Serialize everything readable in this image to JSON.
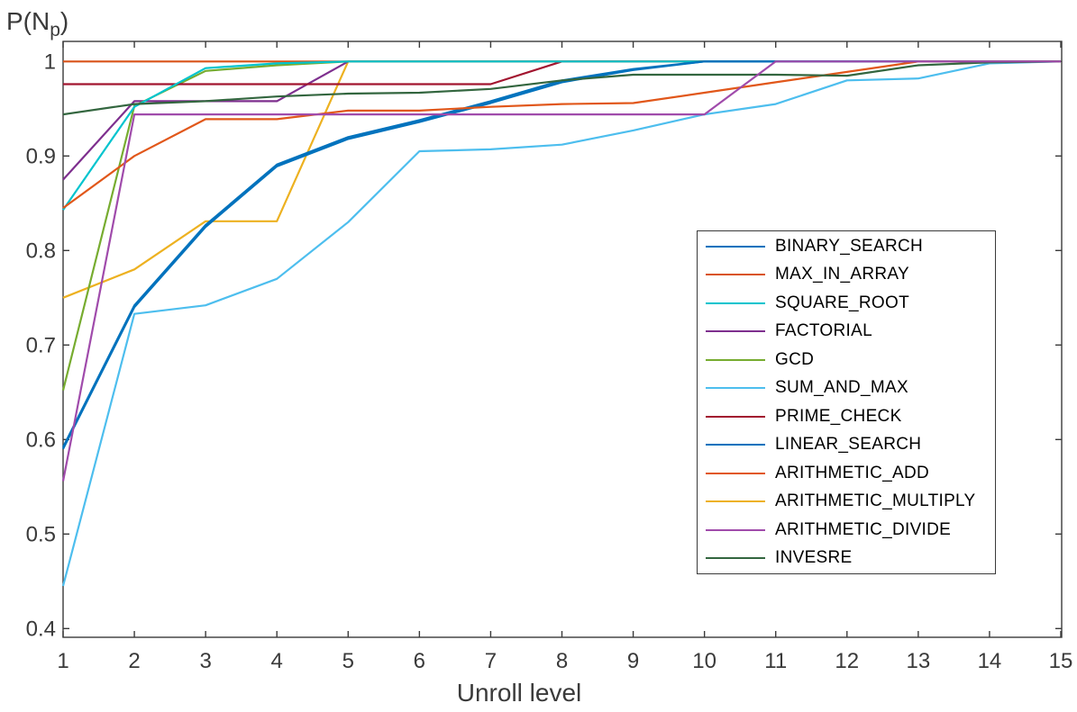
{
  "figure": {
    "ylabel": {
      "prefix": "P(N",
      "sub": "p",
      "suffix": ")"
    }
  },
  "chart_data": {
    "type": "line",
    "title": "",
    "xlabel": "Unroll level",
    "ylabel": "P(N_p)",
    "x": [
      1,
      2,
      3,
      4,
      5,
      6,
      7,
      8,
      9,
      10,
      11,
      12,
      13,
      14,
      15
    ],
    "xlim": [
      1,
      15
    ],
    "ylim": [
      0.4,
      1.0
    ],
    "xticks": [
      1,
      2,
      3,
      4,
      5,
      6,
      7,
      8,
      9,
      10,
      11,
      12,
      13,
      14,
      15
    ],
    "yticks": [
      0.4,
      0.5,
      0.6,
      0.7,
      0.8,
      0.9,
      1
    ],
    "grid": false,
    "legend_position": "middle-right",
    "axis_color": "#3a3a3a",
    "series": [
      {
        "name": "BINARY_SEARCH",
        "color": "#0072BD",
        "values": [
          0.59,
          0.74,
          0.825,
          0.889,
          0.918,
          0.936,
          0.956,
          0.978,
          0.991,
          1,
          1,
          1,
          1,
          1,
          1
        ]
      },
      {
        "name": "MAX_IN_ARRAY",
        "color": "#D95319",
        "values": [
          1,
          1,
          1,
          1,
          1,
          1,
          1,
          1,
          1,
          1,
          1,
          1,
          1,
          1,
          1
        ]
      },
      {
        "name": "SQUARE_ROOT",
        "color": "#00C4CE",
        "values": [
          0.843,
          0.952,
          0.993,
          0.998,
          1,
          1,
          1,
          1,
          1,
          1,
          1,
          1,
          1,
          1,
          1
        ]
      },
      {
        "name": "FACTORIAL",
        "color": "#7E2F8E",
        "values": [
          0.875,
          0.958,
          0.958,
          0.958,
          1,
          1,
          1,
          1,
          1,
          1,
          1,
          1,
          1,
          1,
          1
        ]
      },
      {
        "name": "GCD",
        "color": "#77AC30",
        "values": [
          0.652,
          0.953,
          0.99,
          0.996,
          1,
          1,
          1,
          1,
          1,
          1,
          1,
          1,
          1,
          1,
          1
        ]
      },
      {
        "name": "SUM_AND_MAX",
        "color": "#4DBEEE",
        "values": [
          0.445,
          0.733,
          0.742,
          0.77,
          0.83,
          0.905,
          0.907,
          0.912,
          0.927,
          0.944,
          0.955,
          0.98,
          0.982,
          0.998,
          1
        ]
      },
      {
        "name": "PRIME_CHECK",
        "color": "#A2142F",
        "values": [
          0.976,
          0.976,
          0.976,
          0.976,
          0.976,
          0.976,
          0.976,
          1,
          1,
          1,
          1,
          1,
          1,
          1,
          1
        ]
      },
      {
        "name": "LINEAR_SEARCH",
        "color": "#0072BD",
        "values": [
          0.592,
          0.742,
          0.827,
          0.891,
          0.92,
          0.938,
          0.958,
          0.98,
          0.992,
          1,
          1,
          1,
          1,
          1,
          1
        ]
      },
      {
        "name": "ARITHMETIC_ADD",
        "color": "#E1571A",
        "values": [
          0.845,
          0.9,
          0.939,
          0.939,
          0.948,
          0.948,
          0.952,
          0.955,
          0.956,
          0.967,
          0.978,
          0.989,
          1,
          1,
          1
        ]
      },
      {
        "name": "ARITHMETIC_MULTIPLY",
        "color": "#EDB120",
        "values": [
          0.75,
          0.78,
          0.831,
          0.831,
          1,
          1,
          1,
          1,
          1,
          1,
          1,
          1,
          1,
          1,
          1
        ]
      },
      {
        "name": "ARITHMETIC_DIVIDE",
        "color": "#A04BAB",
        "values": [
          0.556,
          0.944,
          0.944,
          0.944,
          0.944,
          0.944,
          0.944,
          0.944,
          0.944,
          0.944,
          1,
          1,
          1,
          1,
          1
        ]
      },
      {
        "name": "INVESRE",
        "color": "#33663F",
        "values": [
          0.944,
          0.955,
          0.958,
          0.963,
          0.966,
          0.967,
          0.971,
          0.98,
          0.986,
          0.986,
          0.986,
          0.985,
          0.996,
          0.999,
          1
        ]
      }
    ]
  }
}
